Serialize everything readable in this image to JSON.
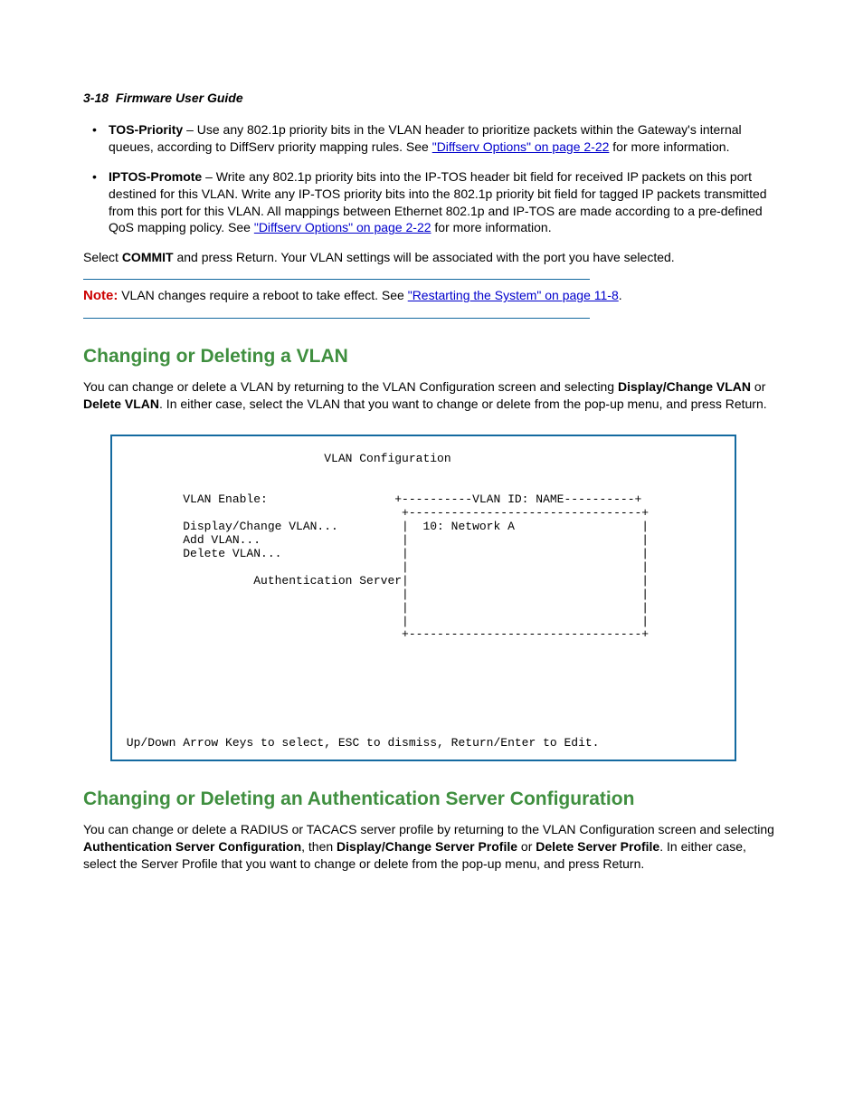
{
  "header": {
    "page_ref": "3-18",
    "title": "Firmware User Guide"
  },
  "bullet1": {
    "term": "TOS-Priority",
    "text_before_link": " – Use any 802.1p priority bits in the VLAN header to prioritize packets within the Gateway's internal queues, according to DiffServ priority mapping rules. See ",
    "link": "\"Diffserv Options\" on page 2-22",
    "text_after_link": " for more information."
  },
  "bullet2": {
    "term": "IPTOS-Promote",
    "text_before_link": " – Write any 802.1p priority bits into the IP-TOS header bit field for received IP packets on this port destined for this VLAN. Write any IP-TOS priority bits into the 802.1p priority bit field for tagged IP packets transmitted from this port for this VLAN. All mappings between Ethernet 802.1p and IP-TOS are made according to a pre-defined QoS mapping policy. See ",
    "link": "\"Diffserv Options\" on page 2-22",
    "text_after_link": " for more information."
  },
  "commit_line": {
    "before": "Select ",
    "bold": "COMMIT",
    "after": " and press Return. Your VLAN settings will be associated with the port you have selected."
  },
  "note": {
    "label": "Note:",
    "text_before_link": "  VLAN changes require a reboot to take effect. See ",
    "link": "\"Restarting the System\" on page 11-8",
    "text_after_link": "."
  },
  "section1": {
    "title": "Changing or Deleting a VLAN",
    "p_before_b1": "You can change or delete a VLAN by returning to the VLAN Configuration screen and selecting ",
    "b1": "Display/Change VLAN",
    "p_mid1": " or ",
    "b2": "Delete VLAN",
    "p_after_b2": ". In either case, select the VLAN that you want to change or delete from the pop-up menu, and press Return."
  },
  "terminal": {
    "content": "                             VLAN Configuration\n\n\n         VLAN Enable:                  +----------VLAN ID: NAME----------+\n                                        +---------------------------------+\n         Display/Change VLAN...         |  10: Network A                  |\n         Add VLAN...                    |                                 |\n         Delete VLAN...                 |                                 |\n                                        |                                 |\n                   Authentication Server|                                 |\n                                        |                                 |\n                                        |                                 |\n                                        |                                 |\n                                        +---------------------------------+\n\n\n\n\n\n\n\n Up/Down Arrow Keys to select, ESC to dismiss, Return/Enter to Edit."
  },
  "section2": {
    "title": "Changing or Deleting an Authentication Server Configuration",
    "p_before_b1": "You can change or delete a RADIUS or TACACS server profile by returning to the VLAN Configuration screen and selecting ",
    "b1": "Authentication Server Configuration",
    "p_mid1": ", then ",
    "b2": "Display/Change Server Profile",
    "p_mid2": " or ",
    "b3": "Delete Server Profile",
    "p_after": ". In either case, select the Server Profile that you want to change or delete from the pop-up menu, and press Return."
  }
}
